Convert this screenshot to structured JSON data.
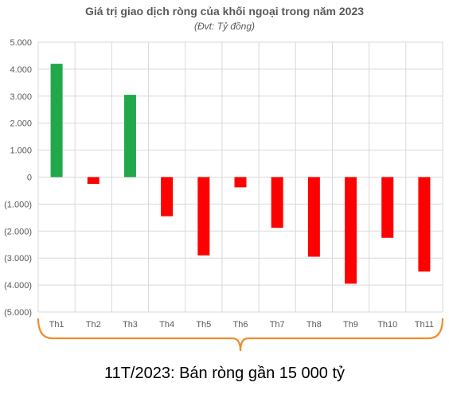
{
  "chart_data": {
    "type": "bar",
    "title": "Giá trị giao dịch ròng của khối ngoại trong năm 2023",
    "subtitle": "(Đvt: Tỷ đồng)",
    "categories": [
      "Th1",
      "Th2",
      "Th3",
      "Th4",
      "Th5",
      "Th6",
      "Th7",
      "Th8",
      "Th9",
      "Th10",
      "Th11"
    ],
    "values": [
      4200,
      -250,
      3050,
      -1450,
      -2900,
      -380,
      -1880,
      -2950,
      -3950,
      -2250,
      -3500
    ],
    "ylim": [
      -5000,
      5000
    ],
    "yticks": [
      5000,
      4000,
      3000,
      2000,
      1000,
      0,
      -1000,
      -2000,
      -3000,
      -4000,
      -5000
    ],
    "ytick_labels": [
      "5.000",
      "4.000",
      "3.000",
      "2.000",
      "1.000",
      "0",
      "(1.000)",
      "(2.000)",
      "(3.000)",
      "(4.000)",
      "(5.000)"
    ],
    "grid": true,
    "colors": {
      "positive": "#21a84a",
      "negative": "#ff0000",
      "grid": "#d9d9d9",
      "brace": "#f08c2d"
    }
  },
  "caption": "11T/2023: Bán ròng gần 15 000 tỷ"
}
